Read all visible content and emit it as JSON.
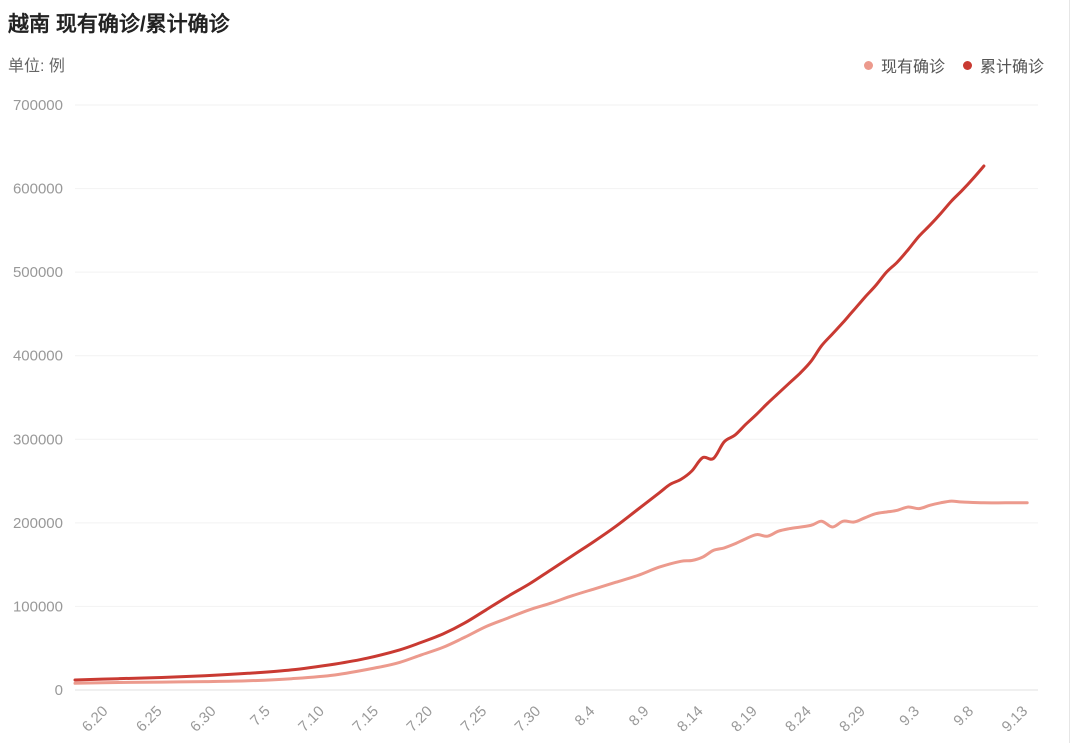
{
  "chart_data": {
    "type": "line",
    "title": "越南 现有确诊/累计确诊",
    "unit_label": "单位: 例",
    "ylim": [
      0,
      700000
    ],
    "yticks": [
      0,
      100000,
      200000,
      300000,
      400000,
      500000,
      600000,
      700000
    ],
    "x_tick_labels": [
      "6.20",
      "6.25",
      "6.30",
      "7.5",
      "7.10",
      "7.15",
      "7.20",
      "7.25",
      "7.30",
      "8.4",
      "8.9",
      "8.14",
      "8.19",
      "8.24",
      "8.29",
      "9.3",
      "9.8",
      "9.13"
    ],
    "x_range": [
      0,
      89
    ],
    "x_tick_positions": [
      2,
      7,
      12,
      17,
      22,
      27,
      32,
      37,
      42,
      47,
      52,
      57,
      62,
      67,
      72,
      77,
      82,
      87
    ],
    "grid": "horizontal",
    "legend_position": "top-right",
    "series": [
      {
        "name": "现有确诊",
        "color": "#ec9a8d",
        "points": [
          [
            0,
            8000
          ],
          [
            4,
            9000
          ],
          [
            8,
            9500
          ],
          [
            12,
            10000
          ],
          [
            16,
            11000
          ],
          [
            20,
            13500
          ],
          [
            24,
            18000
          ],
          [
            28,
            27000
          ],
          [
            30,
            33000
          ],
          [
            32,
            42000
          ],
          [
            34,
            51000
          ],
          [
            36,
            63000
          ],
          [
            38,
            76000
          ],
          [
            40,
            86000
          ],
          [
            42,
            96000
          ],
          [
            44,
            104000
          ],
          [
            46,
            113000
          ],
          [
            48,
            121000
          ],
          [
            50,
            129000
          ],
          [
            52,
            137000
          ],
          [
            54,
            147000
          ],
          [
            56,
            154000
          ],
          [
            57,
            155000
          ],
          [
            58,
            159000
          ],
          [
            59,
            167000
          ],
          [
            60,
            170000
          ],
          [
            61,
            175000
          ],
          [
            62,
            181000
          ],
          [
            63,
            186000
          ],
          [
            64,
            184000
          ],
          [
            65,
            190000
          ],
          [
            66,
            193000
          ],
          [
            68,
            197000
          ],
          [
            69,
            202000
          ],
          [
            70,
            195000
          ],
          [
            71,
            202000
          ],
          [
            72,
            201000
          ],
          [
            73,
            206000
          ],
          [
            74,
            211000
          ],
          [
            75,
            213000
          ],
          [
            76,
            215000
          ],
          [
            77,
            219000
          ],
          [
            78,
            217000
          ],
          [
            79,
            221000
          ],
          [
            80,
            224000
          ],
          [
            81,
            226000
          ],
          [
            82,
            225000
          ],
          [
            84,
            224000
          ],
          [
            86,
            224000
          ],
          [
            88,
            224000
          ]
        ]
      },
      {
        "name": "累计确诊",
        "color": "#c93a32",
        "points": [
          [
            0,
            12000
          ],
          [
            4,
            13500
          ],
          [
            8,
            15000
          ],
          [
            12,
            17000
          ],
          [
            16,
            20000
          ],
          [
            20,
            24000
          ],
          [
            24,
            31000
          ],
          [
            27,
            38000
          ],
          [
            30,
            48000
          ],
          [
            32,
            57000
          ],
          [
            34,
            67000
          ],
          [
            36,
            80000
          ],
          [
            38,
            96000
          ],
          [
            40,
            112000
          ],
          [
            42,
            127000
          ],
          [
            44,
            144000
          ],
          [
            46,
            161000
          ],
          [
            48,
            178000
          ],
          [
            50,
            196000
          ],
          [
            52,
            216000
          ],
          [
            54,
            236000
          ],
          [
            55,
            246000
          ],
          [
            56,
            252000
          ],
          [
            57,
            262000
          ],
          [
            58,
            278000
          ],
          [
            59,
            277000
          ],
          [
            60,
            297000
          ],
          [
            61,
            305000
          ],
          [
            62,
            318000
          ],
          [
            63,
            330000
          ],
          [
            64,
            343000
          ],
          [
            65,
            355000
          ],
          [
            66,
            367000
          ],
          [
            67,
            379000
          ],
          [
            68,
            393000
          ],
          [
            69,
            412000
          ],
          [
            70,
            426000
          ],
          [
            71,
            440000
          ],
          [
            72,
            455000
          ],
          [
            73,
            470000
          ],
          [
            74,
            484000
          ],
          [
            75,
            500000
          ],
          [
            76,
            512000
          ],
          [
            77,
            527000
          ],
          [
            78,
            543000
          ],
          [
            79,
            556000
          ],
          [
            80,
            570000
          ],
          [
            81,
            585000
          ],
          [
            82,
            598000
          ],
          [
            83,
            612000
          ],
          [
            84,
            627000
          ]
        ]
      }
    ]
  }
}
